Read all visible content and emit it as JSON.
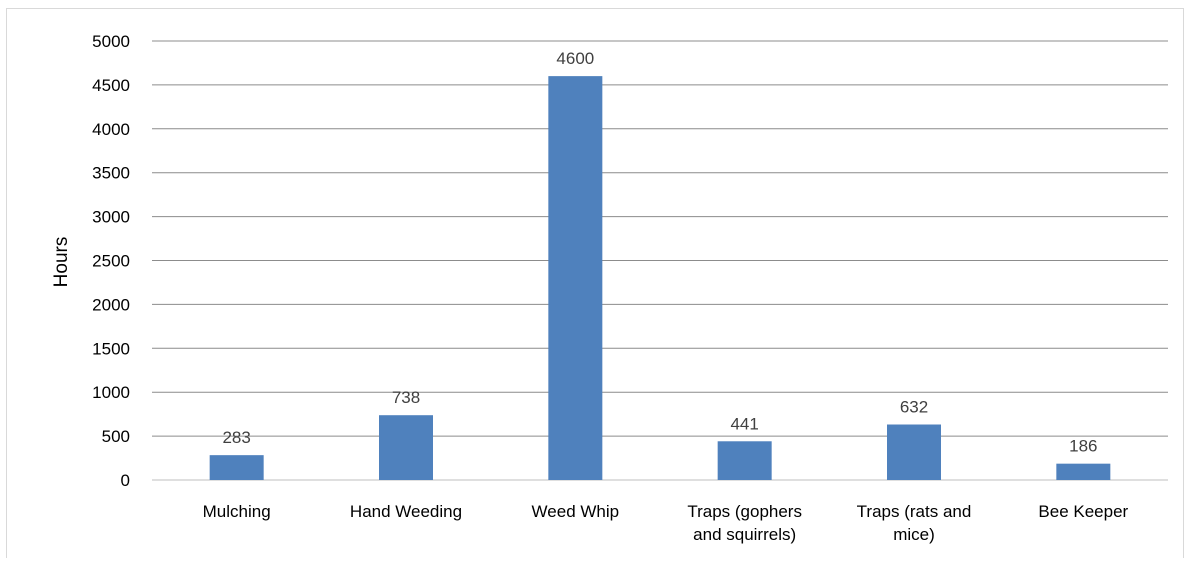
{
  "chart_data": {
    "type": "bar",
    "title": "",
    "xlabel": "",
    "ylabel": "Hours",
    "ylim": [
      0,
      5000
    ],
    "yticks": [
      0,
      500,
      1000,
      1500,
      2000,
      2500,
      3000,
      3500,
      4000,
      4500,
      5000
    ],
    "grid": true,
    "legend": "none",
    "bar_color": "#4f81bd",
    "categories": [
      [
        "Mulching"
      ],
      [
        "Hand Weeding"
      ],
      [
        "Weed Whip"
      ],
      [
        "Traps (gophers",
        "and squirrels)"
      ],
      [
        "Traps (rats and",
        "mice)"
      ],
      [
        "Bee Keeper"
      ]
    ],
    "values": [
      283,
      738,
      4600,
      441,
      632,
      186
    ],
    "data_labels": [
      "283",
      "738",
      "4600",
      "441",
      "632",
      "186"
    ]
  }
}
